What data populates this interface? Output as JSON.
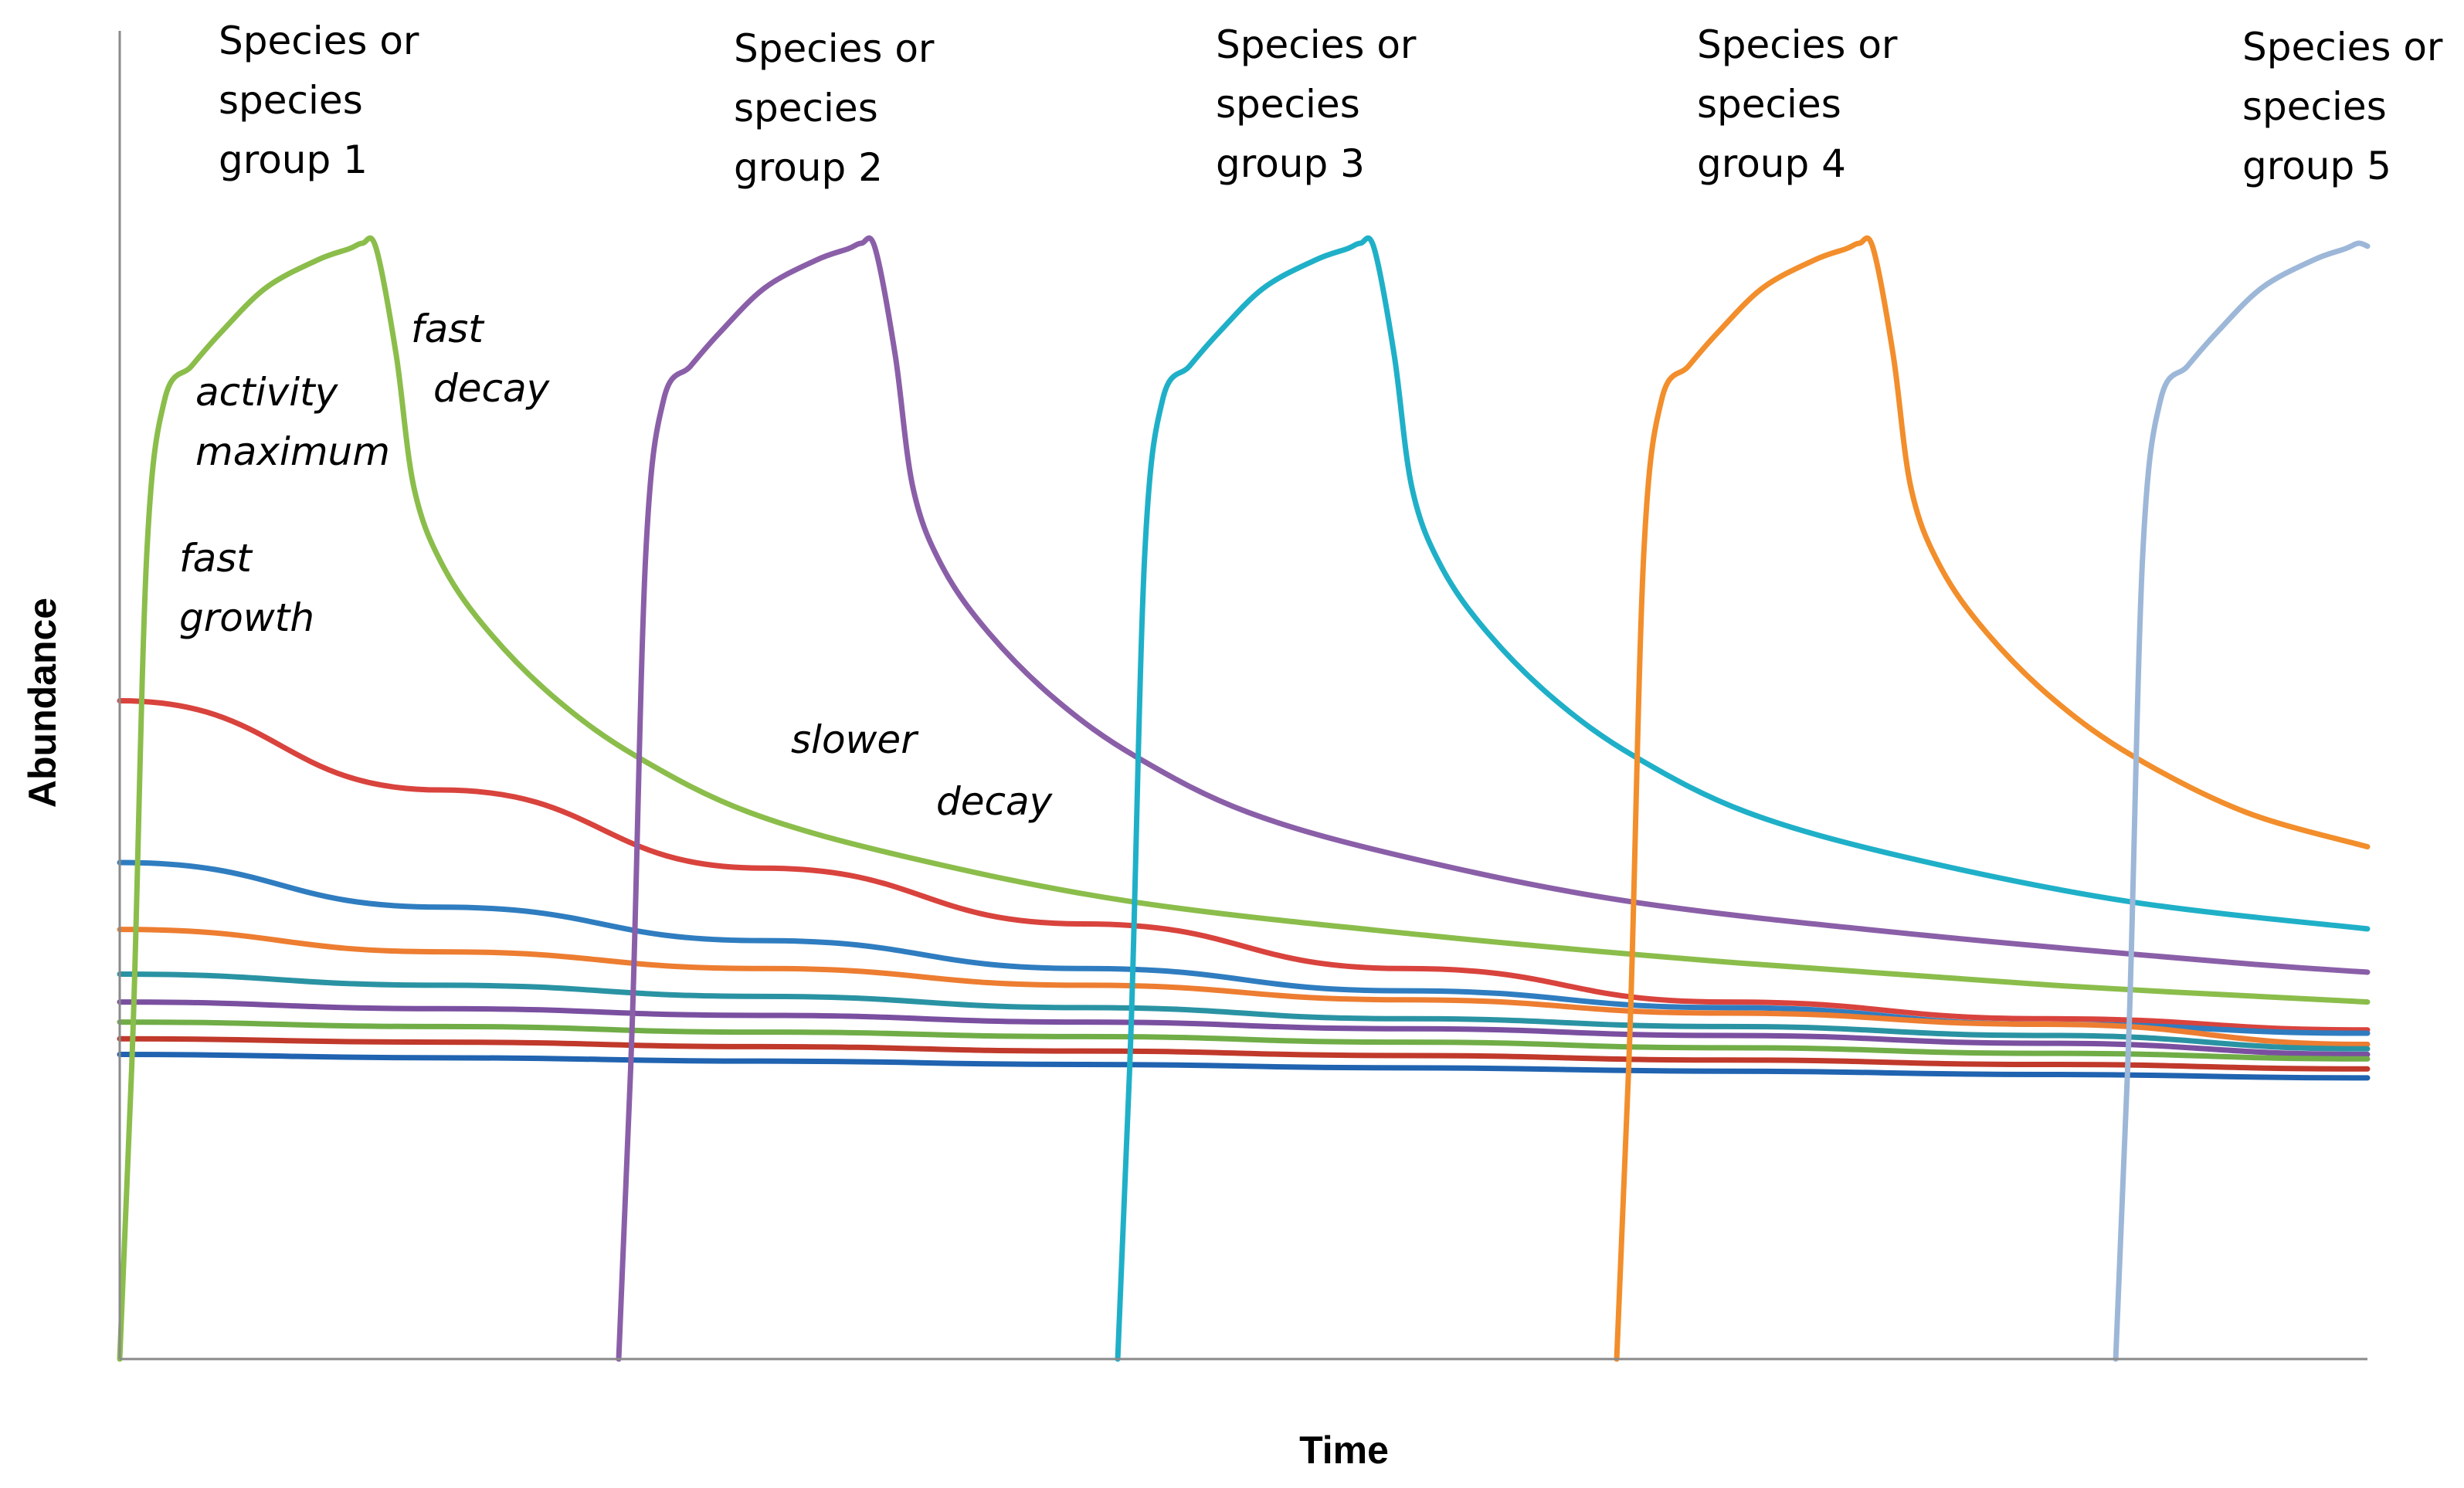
{
  "chart_data": {
    "type": "line",
    "title": "",
    "xlabel": "Time",
    "ylabel": "Abundance",
    "xlim": [
      0,
      100
    ],
    "ylim": [
      0,
      100
    ],
    "grid": false,
    "group_labels": [
      {
        "lines": [
          "Species or",
          "species",
          "group 1"
        ]
      },
      {
        "lines": [
          "Species or",
          "species",
          "group  2"
        ]
      },
      {
        "lines": [
          "Species or",
          "species",
          "group  3"
        ]
      },
      {
        "lines": [
          "Species or",
          "species",
          "group  4"
        ]
      },
      {
        "lines": [
          "Species or",
          "species",
          "group  5"
        ]
      }
    ],
    "annotations": [
      {
        "lines": [
          "activity",
          "maximum"
        ]
      },
      {
        "lines": [
          "fast",
          "decay"
        ]
      },
      {
        "lines": [
          "fast",
          "growth"
        ]
      },
      {
        "lines": [
          "slower",
          "decay"
        ]
      }
    ],
    "bloom_curves": [
      {
        "name": "Species or species group 1",
        "color": "#8BBD4B",
        "start": 0,
        "peak": 100
      },
      {
        "name": "Species or species group 2",
        "color": "#8A5FA8",
        "start": 22.2,
        "peak": 100
      },
      {
        "name": "Species or species group 3",
        "color": "#1FB0C8",
        "start": 44.4,
        "peak": 100
      },
      {
        "name": "Species or species group 4",
        "color": "#F28E2B",
        "start": 66.6,
        "peak": 100
      },
      {
        "name": "Species or species group 5",
        "color": "#9DB7D8",
        "start": 88.8,
        "peak": 100
      }
    ],
    "background_series": [
      {
        "name": "red",
        "color": "#D9433D",
        "values": [
          59,
          51,
          44,
          39,
          35,
          32,
          30.5,
          29.5
        ]
      },
      {
        "name": "blue",
        "color": "#2F7DC0",
        "values": [
          44.5,
          40.5,
          37.5,
          35,
          33,
          31.5,
          30,
          29.2
        ]
      },
      {
        "name": "orange",
        "color": "#ED7D31",
        "values": [
          38.5,
          36.5,
          35,
          33.5,
          32.2,
          31,
          30,
          28.2
        ]
      },
      {
        "name": "teal",
        "color": "#2A93A3",
        "values": [
          34.5,
          33.5,
          32.5,
          31.5,
          30.5,
          29.8,
          29,
          27.8
        ]
      },
      {
        "name": "purple",
        "color": "#7A4FA0",
        "values": [
          32,
          31.4,
          30.8,
          30.2,
          29.6,
          29,
          28.3,
          27.3
        ]
      },
      {
        "name": "green",
        "color": "#70AD47",
        "values": [
          30.2,
          29.8,
          29.3,
          28.9,
          28.4,
          27.9,
          27.4,
          26.9
        ]
      },
      {
        "name": "red-2",
        "color": "#C0392B",
        "values": [
          28.7,
          28.4,
          28,
          27.6,
          27.2,
          26.8,
          26.4,
          26
        ]
      },
      {
        "name": "blue-2",
        "color": "#2063B0",
        "values": [
          27.3,
          27,
          26.7,
          26.4,
          26.1,
          25.8,
          25.5,
          25.2
        ]
      }
    ]
  }
}
